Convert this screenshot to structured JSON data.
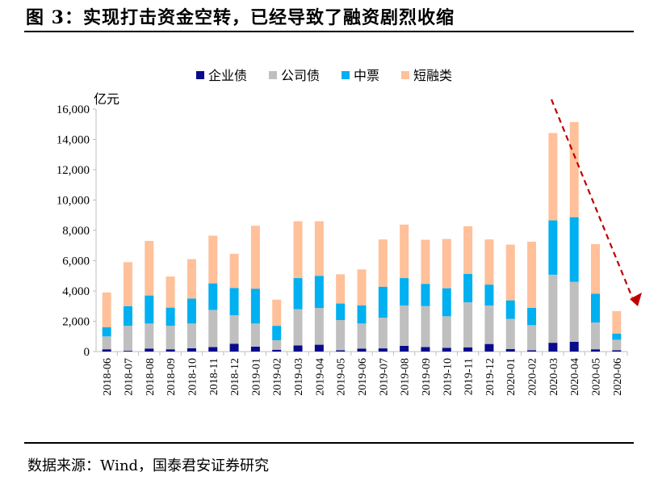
{
  "title": "图 3：实现打击资金空转，已经导致了融资剧烈收缩",
  "source": "数据来源：Wind，国泰君安证券研究",
  "chart_data": {
    "type": "bar",
    "stacked": true,
    "ylabel": "亿元",
    "ylim": [
      0,
      16000
    ],
    "yticks": [
      "0",
      "2,000",
      "4,000",
      "6,000",
      "8,000",
      "10,000",
      "12,000",
      "14,000",
      "16,000"
    ],
    "grid": false,
    "legend": "top",
    "categories": [
      "2018-06",
      "2018-07",
      "2018-08",
      "2018-09",
      "2018-10",
      "2018-11",
      "2018-12",
      "2019-01",
      "2019-02",
      "2019-03",
      "2019-04",
      "2019-05",
      "2019-06",
      "2019-07",
      "2019-08",
      "2019-09",
      "2019-10",
      "2019-11",
      "2019-12",
      "2020-01",
      "2020-02",
      "2020-03",
      "2020-04",
      "2020-05",
      "2020-06"
    ],
    "series": [
      {
        "name": "企业债",
        "color": "#0A0A8C",
        "values": [
          150,
          50,
          200,
          150,
          220,
          300,
          520,
          330,
          120,
          400,
          450,
          80,
          200,
          210,
          380,
          300,
          250,
          280,
          500,
          170,
          80,
          580,
          650,
          150,
          80
        ]
      },
      {
        "name": "公司债",
        "color": "#BFBFBF",
        "values": [
          850,
          1650,
          1650,
          1550,
          1630,
          2450,
          1880,
          1520,
          630,
          2400,
          2430,
          2000,
          1650,
          2030,
          2660,
          2700,
          2080,
          2970,
          2540,
          1990,
          1660,
          4490,
          3950,
          1770,
          700
        ]
      },
      {
        "name": "中票",
        "color": "#00B0F0",
        "values": [
          600,
          1300,
          1850,
          1200,
          1650,
          1750,
          1800,
          2300,
          950,
          2050,
          2120,
          1090,
          1200,
          2040,
          1810,
          1470,
          1850,
          1880,
          1380,
          1220,
          1140,
          3590,
          4270,
          1900,
          410
        ]
      },
      {
        "name": "短融类",
        "color": "#FFC09A",
        "values": [
          2300,
          2900,
          3600,
          2050,
          2600,
          3150,
          2250,
          4150,
          1730,
          3750,
          3600,
          1930,
          2370,
          3120,
          3530,
          2910,
          3250,
          3140,
          2980,
          3680,
          4370,
          5760,
          6280,
          3270,
          1480
        ]
      }
    ],
    "annotation": {
      "type": "dashed-arrow",
      "color": "#C00000",
      "from_category": "2020-03",
      "to_category": "2020-06"
    }
  }
}
